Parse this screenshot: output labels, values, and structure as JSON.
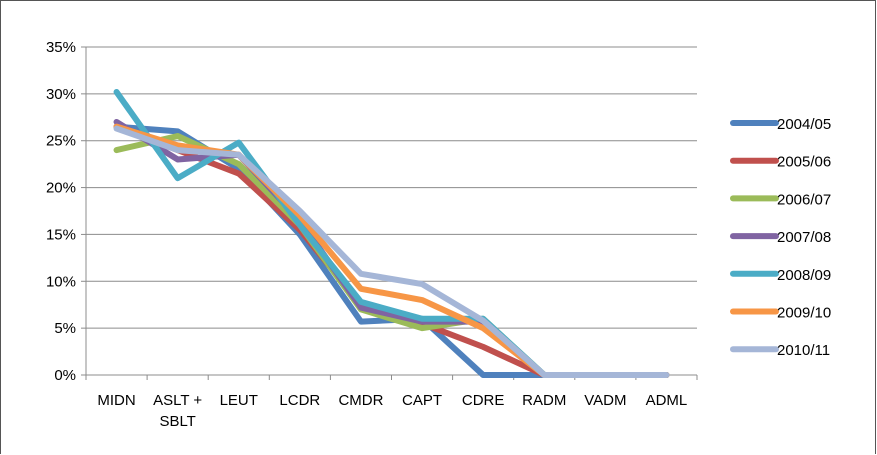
{
  "chart_data": {
    "type": "line",
    "title": "",
    "xlabel": "",
    "ylabel": "",
    "categories": [
      "MIDN",
      "ASLT + SBLT",
      "LEUT",
      "LCDR",
      "CMDR",
      "CAPT",
      "CDRE",
      "RADM",
      "VADM",
      "ADML"
    ],
    "category_lines": [
      [
        "MIDN"
      ],
      [
        "ASLT +",
        "SBLT"
      ],
      [
        "LEUT"
      ],
      [
        "LCDR"
      ],
      [
        "CMDR"
      ],
      [
        "CAPT"
      ],
      [
        "CDRE"
      ],
      [
        "RADM"
      ],
      [
        "VADM"
      ],
      [
        "ADML"
      ]
    ],
    "ylim": [
      0,
      35
    ],
    "yticks": [
      0,
      5,
      10,
      15,
      20,
      25,
      30,
      35
    ],
    "ytick_labels": [
      "0%",
      "5%",
      "10%",
      "15%",
      "20%",
      "25%",
      "30%",
      "35%"
    ],
    "grid": true,
    "legend_position": "right",
    "series": [
      {
        "name": "2004/05",
        "color": "#4F81BD",
        "values": [
          26.5,
          26,
          22,
          15,
          5.7,
          6,
          0,
          0,
          0,
          0
        ]
      },
      {
        "name": "2005/06",
        "color": "#C0504D",
        "values": [
          26.5,
          24,
          21.5,
          15.5,
          7.5,
          5.5,
          3,
          0,
          0,
          0
        ]
      },
      {
        "name": "2006/07",
        "color": "#9BBB59",
        "values": [
          24,
          25.5,
          22.5,
          16,
          7,
          5,
          6,
          0,
          0,
          0
        ]
      },
      {
        "name": "2007/08",
        "color": "#8064A2",
        "values": [
          27,
          23,
          23.5,
          16.5,
          7.2,
          5.7,
          5.7,
          0,
          0,
          0
        ]
      },
      {
        "name": "2008/09",
        "color": "#4BACC6",
        "values": [
          30.2,
          21,
          24.8,
          16,
          7.8,
          6,
          6,
          0,
          0,
          0
        ]
      },
      {
        "name": "2009/10",
        "color": "#F79646",
        "values": [
          26.5,
          24.5,
          23.5,
          17,
          9.2,
          8,
          5,
          0,
          0,
          0
        ]
      },
      {
        "name": "2010/11",
        "color": "#A5B6D7",
        "values": [
          26.3,
          24,
          23.5,
          17.5,
          10.8,
          9.7,
          5.8,
          0,
          0,
          0
        ]
      }
    ]
  }
}
